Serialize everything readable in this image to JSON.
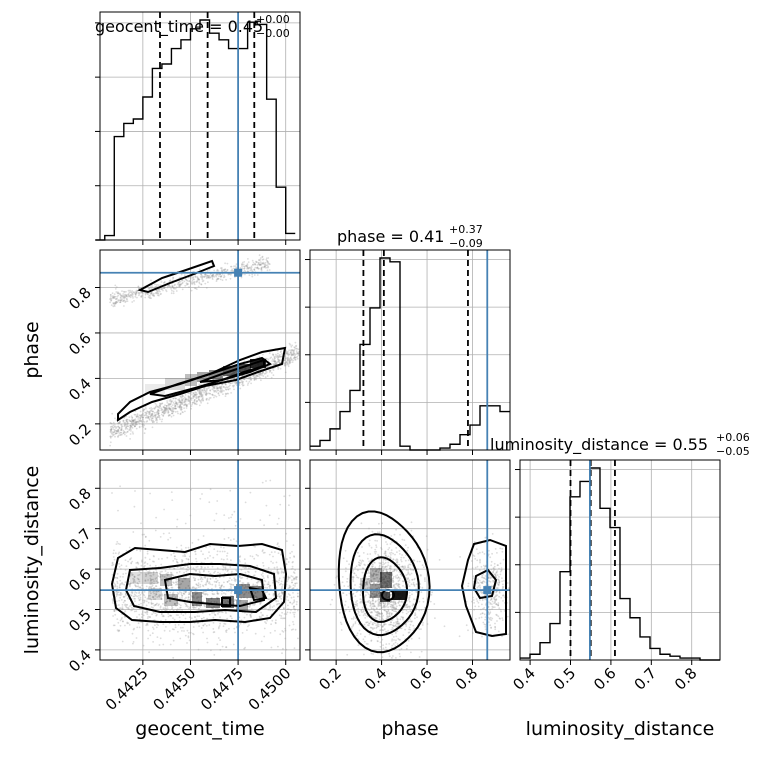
{
  "colors": {
    "truth": "#4682b4",
    "hist": "#000000",
    "contour": "#000000",
    "points": "#9a9a9a"
  },
  "chart_data": {
    "type": "corner",
    "parameters": [
      "geocent_time",
      "phase",
      "luminosity_distance"
    ],
    "truths": {
      "geocent_time": 0.4475,
      "phase": 0.865,
      "luminosity_distance": 0.548
    },
    "ranges": {
      "geocent_time": [
        0.44025,
        0.45075
      ],
      "phase": [
        0.085,
        0.965
      ],
      "luminosity_distance": [
        0.375,
        0.87
      ]
    },
    "grid": true,
    "axes_labels": {
      "geocent_time": {
        "x": "geocent_time"
      },
      "phase": {
        "x": "phase",
        "y": "phase"
      },
      "luminosity_distance": {
        "x": "luminosity_distance",
        "y": "luminosity_distance"
      }
    },
    "tick_labels": {
      "geocent_time": [
        "0.4425",
        "0.4450",
        "0.4475",
        "0.4500"
      ],
      "phase": [
        "0.2",
        "0.4",
        "0.6",
        "0.8"
      ],
      "luminosity_distance": [
        "0.4",
        "0.5",
        "0.6",
        "0.7",
        "0.8"
      ]
    },
    "panel_titles": {
      "geocent_time": {
        "label": "geocent_time",
        "median": "0.45",
        "plus": "+0.00",
        "minus": "−0.00"
      },
      "phase": {
        "label": "phase",
        "median": "0.41",
        "plus": "+0.37",
        "minus": "−0.09"
      },
      "luminosity_distance": {
        "label": "luminosity_distance",
        "median": "0.55",
        "plus": "+0.06",
        "minus": "−0.05"
      }
    },
    "histograms": {
      "geocent_time": {
        "x": [
          0.44025,
          0.44075,
          0.44125,
          0.44175,
          0.44225,
          0.44275,
          0.44325,
          0.44375,
          0.44425,
          0.44475,
          0.44525,
          0.44575,
          0.44625,
          0.44675,
          0.44725,
          0.44775,
          0.44825,
          0.44875,
          0.44925,
          0.44975,
          0.45025
        ],
        "counts": [
          0,
          0.02,
          0.47,
          0.53,
          0.55,
          0.65,
          0.78,
          0.8,
          0.87,
          0.91,
          0.96,
          1.0,
          0.94,
          0.91,
          0.87,
          0.87,
          0.99,
          0.98,
          0.64,
          0.24,
          0.03
        ],
        "quantiles": [
          0.4434,
          0.4459,
          0.44835
        ]
      },
      "phase": {
        "x": [
          0.107,
          0.151,
          0.195,
          0.239,
          0.283,
          0.327,
          0.371,
          0.415,
          0.459,
          0.503,
          0.547,
          0.591,
          0.635,
          0.679,
          0.723,
          0.767,
          0.811,
          0.855,
          0.899,
          0.943
        ],
        "counts": [
          0.02,
          0.05,
          0.11,
          0.2,
          0.31,
          0.55,
          0.74,
          1.0,
          0.98,
          0.02,
          0.0,
          0.0,
          0.0,
          0.01,
          0.03,
          0.08,
          0.13,
          0.23,
          0.23,
          0.2
        ],
        "quantiles": [
          0.32,
          0.41,
          0.78
        ]
      },
      "luminosity_distance": {
        "x": [
          0.3874,
          0.4121,
          0.4369,
          0.4616,
          0.4864,
          0.5111,
          0.5359,
          0.5606,
          0.5854,
          0.6101,
          0.6349,
          0.6596,
          0.6844,
          0.7091,
          0.7339,
          0.7586,
          0.7834,
          0.8081,
          0.8329,
          0.8576
        ],
        "counts": [
          0.01,
          0.03,
          0.09,
          0.19,
          0.46,
          0.85,
          0.93,
          1.0,
          0.79,
          0.69,
          0.32,
          0.22,
          0.12,
          0.06,
          0.03,
          0.02,
          0.01,
          0.01,
          0.0,
          0.0
        ],
        "quantiles": [
          0.5,
          0.55,
          0.61
        ]
      }
    },
    "contour_pairs": [
      {
        "x": "geocent_time",
        "y": "phase",
        "modes": [
          {
            "x": [
              0.4405,
              0.45
            ],
            "y": [
              0.15,
              0.5
            ]
          },
          {
            "x": [
              0.443,
              0.45
            ],
            "y": [
              0.8,
              0.97
            ]
          }
        ]
      },
      {
        "x": "geocent_time",
        "y": "luminosity_distance",
        "modes": [
          {
            "x": [
              0.441,
              0.45
            ],
            "y": [
              0.45,
              0.66
            ]
          }
        ]
      },
      {
        "x": "phase",
        "y": "luminosity_distance",
        "modes": [
          {
            "x": [
              0.2,
              0.55
            ],
            "y": [
              0.43,
              0.7
            ]
          },
          {
            "x": [
              0.76,
              0.96
            ],
            "y": [
              0.45,
              0.64
            ]
          }
        ]
      }
    ]
  }
}
